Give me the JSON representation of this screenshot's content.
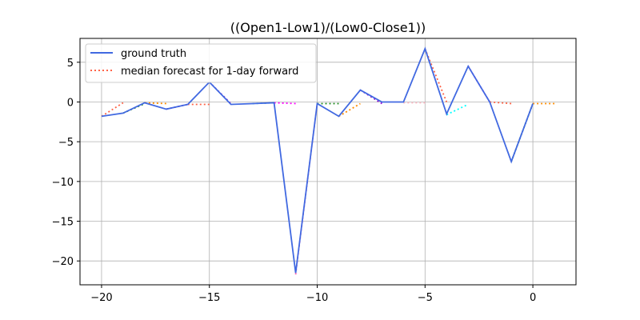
{
  "chart_data": {
    "type": "line",
    "title": "((Open1-Low1)/(Low0-Close1))",
    "xlabel": "",
    "ylabel": "",
    "xlim": [
      -21,
      2
    ],
    "ylim": [
      -23,
      8
    ],
    "xticks": [
      -20,
      -15,
      -10,
      -5,
      0
    ],
    "yticks": [
      5,
      0,
      -5,
      -10,
      -15,
      -20
    ],
    "grid": true,
    "legend": {
      "placement": "top-left",
      "entries": [
        {
          "label": "ground truth",
          "style": "solid",
          "color": "#4169e1"
        },
        {
          "label": "median forecast for 1-day forward",
          "style": "dotted",
          "color": "#ff6347"
        }
      ]
    },
    "series": [
      {
        "name": "ground truth",
        "style": "solid",
        "color": "#4169e1",
        "x": [
          -20,
          -19,
          -18,
          -17,
          -16,
          -15,
          -14,
          -13,
          -12,
          -11,
          -10,
          -9,
          -8,
          -7,
          -6,
          -5,
          -4,
          -3,
          -2,
          -1,
          0
        ],
        "y": [
          -1.8,
          -1.4,
          -0.1,
          -0.9,
          -0.3,
          2.5,
          -0.3,
          -0.2,
          -0.1,
          -21.5,
          -0.2,
          -1.8,
          1.5,
          0.0,
          0.0,
          6.7,
          -1.5,
          4.5,
          0.0,
          -7.5,
          -0.2
        ]
      }
    ],
    "forecasts": [
      {
        "x": [
          -20,
          -19
        ],
        "y": [
          -1.8,
          -0.1
        ],
        "color": "#ff6347"
      },
      {
        "x": [
          -19,
          -18
        ],
        "y": [
          -1.4,
          -0.2
        ],
        "color": "#228b22"
      },
      {
        "x": [
          -18,
          -17
        ],
        "y": [
          -0.1,
          -0.2
        ],
        "color": "#ff8c00"
      },
      {
        "x": [
          -17,
          -16
        ],
        "y": [
          -0.9,
          -0.3
        ],
        "color": "#9400d3"
      },
      {
        "x": [
          -16,
          -15
        ],
        "y": [
          -0.3,
          -0.3
        ],
        "color": "#ff6347"
      },
      {
        "x": [
          -15,
          -14
        ],
        "y": [
          2.5,
          -0.2
        ],
        "color": "#9932cc"
      },
      {
        "x": [
          -13,
          -12
        ],
        "y": [
          -0.2,
          -0.1
        ],
        "color": "#00ced1"
      },
      {
        "x": [
          -12,
          -11
        ],
        "y": [
          -0.1,
          -0.2
        ],
        "color": "#ff00ff"
      },
      {
        "x": [
          -11,
          -10
        ],
        "y": [
          -21.7,
          -0.2
        ],
        "color": "#ff69b4"
      },
      {
        "x": [
          -10,
          -9
        ],
        "y": [
          -0.2,
          -0.2
        ],
        "color": "#228b22"
      },
      {
        "x": [
          -9,
          -8
        ],
        "y": [
          -1.8,
          -0.2
        ],
        "color": "#ff8c00"
      },
      {
        "x": [
          -8,
          -7
        ],
        "y": [
          1.5,
          -0.2
        ],
        "color": "#9400d3"
      },
      {
        "x": [
          -6,
          -5
        ],
        "y": [
          -0.1,
          -0.1
        ],
        "color": "#ffb6c1"
      },
      {
        "x": [
          -5,
          -4
        ],
        "y": [
          6.7,
          0.0
        ],
        "color": "#ff6347"
      },
      {
        "x": [
          -4,
          -3
        ],
        "y": [
          -1.6,
          -0.3
        ],
        "color": "#00ffff"
      },
      {
        "x": [
          -3,
          -2
        ],
        "y": [
          4.5,
          0.0
        ],
        "color": "#ff00ff"
      },
      {
        "x": [
          -2,
          -1
        ],
        "y": [
          0.0,
          -0.2
        ],
        "color": "#ff6347"
      },
      {
        "x": [
          -1,
          0
        ],
        "y": [
          -7.5,
          -0.2
        ],
        "color": "#228b22"
      },
      {
        "x": [
          0,
          1
        ],
        "y": [
          -0.2,
          -0.2
        ],
        "color": "#ff8c00"
      }
    ]
  }
}
